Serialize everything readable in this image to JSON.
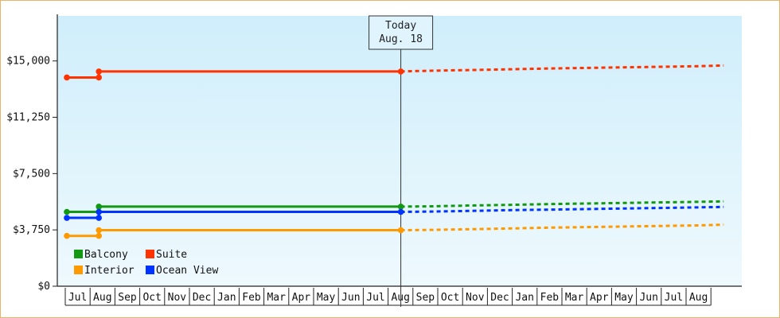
{
  "chart_data": {
    "type": "line",
    "title": "",
    "xlabel": "",
    "ylabel": "",
    "ylim": [
      0,
      18000
    ],
    "yticks": [
      0,
      3750,
      7500,
      11250,
      15000
    ],
    "ytick_labels": [
      "$0",
      "$3,750",
      "$7,500",
      "$11,250",
      "$15,000"
    ],
    "x_months": [
      "Jul",
      "Aug",
      "Sep",
      "Oct",
      "Nov",
      "Dec",
      "Jan",
      "Feb",
      "Mar",
      "Apr",
      "May",
      "Jun",
      "Jul",
      "Aug",
      "Sep",
      "Oct",
      "Nov",
      "Dec",
      "Jan",
      "Feb",
      "Mar",
      "Apr",
      "May",
      "Jun",
      "Jul",
      "Aug"
    ],
    "today_label": [
      "Today",
      "Aug. 18"
    ],
    "today_index": 13,
    "legend_position": "bottom-left",
    "grid": false,
    "series": [
      {
        "name": "Suite",
        "color": "#ff3300",
        "points": [
          [
            -0.45,
            13900
          ],
          [
            0.84,
            13900
          ],
          [
            0.84,
            14300
          ],
          [
            13.0,
            14300
          ]
        ],
        "forecast": [
          [
            13.0,
            14300
          ],
          [
            14.2,
            14350
          ],
          [
            16.0,
            14400
          ],
          [
            17.5,
            14450
          ],
          [
            19.0,
            14500
          ],
          [
            21.0,
            14550
          ],
          [
            23.0,
            14600
          ],
          [
            25.0,
            14650
          ],
          [
            26.0,
            14700
          ]
        ]
      },
      {
        "name": "Balcony",
        "color": "#119911",
        "points": [
          [
            -0.45,
            4950
          ],
          [
            0.84,
            4950
          ],
          [
            0.84,
            5300
          ],
          [
            13.0,
            5300
          ]
        ],
        "forecast": [
          [
            13.0,
            5300
          ],
          [
            14.2,
            5320
          ],
          [
            16.0,
            5380
          ],
          [
            17.5,
            5420
          ],
          [
            19.0,
            5470
          ],
          [
            21.0,
            5520
          ],
          [
            23.0,
            5570
          ],
          [
            25.0,
            5620
          ],
          [
            26.0,
            5650
          ]
        ]
      },
      {
        "name": "Ocean View",
        "color": "#0033ff",
        "points": [
          [
            -0.45,
            4550
          ],
          [
            0.84,
            4550
          ],
          [
            0.84,
            4950
          ],
          [
            13.0,
            4950
          ]
        ],
        "forecast": [
          [
            13.0,
            4950
          ],
          [
            14.2,
            4970
          ],
          [
            16.0,
            5020
          ],
          [
            17.5,
            5070
          ],
          [
            19.0,
            5100
          ],
          [
            21.0,
            5150
          ],
          [
            23.0,
            5200
          ],
          [
            25.0,
            5250
          ],
          [
            26.0,
            5280
          ]
        ]
      },
      {
        "name": "Interior",
        "color": "#ff9900",
        "points": [
          [
            -0.45,
            3350
          ],
          [
            0.84,
            3350
          ],
          [
            0.84,
            3730
          ],
          [
            13.0,
            3730
          ]
        ],
        "forecast": [
          [
            13.0,
            3730
          ],
          [
            14.2,
            3750
          ],
          [
            16.0,
            3800
          ],
          [
            17.5,
            3850
          ],
          [
            19.0,
            3900
          ],
          [
            21.0,
            3950
          ],
          [
            23.0,
            4000
          ],
          [
            25.0,
            4050
          ],
          [
            26.0,
            4100
          ]
        ]
      }
    ],
    "legend": [
      {
        "name": "Balcony",
        "color": "#119911"
      },
      {
        "name": "Suite",
        "color": "#ff3300"
      },
      {
        "name": "Interior",
        "color": "#ff9900"
      },
      {
        "name": "Ocean View",
        "color": "#0033ff"
      }
    ]
  }
}
